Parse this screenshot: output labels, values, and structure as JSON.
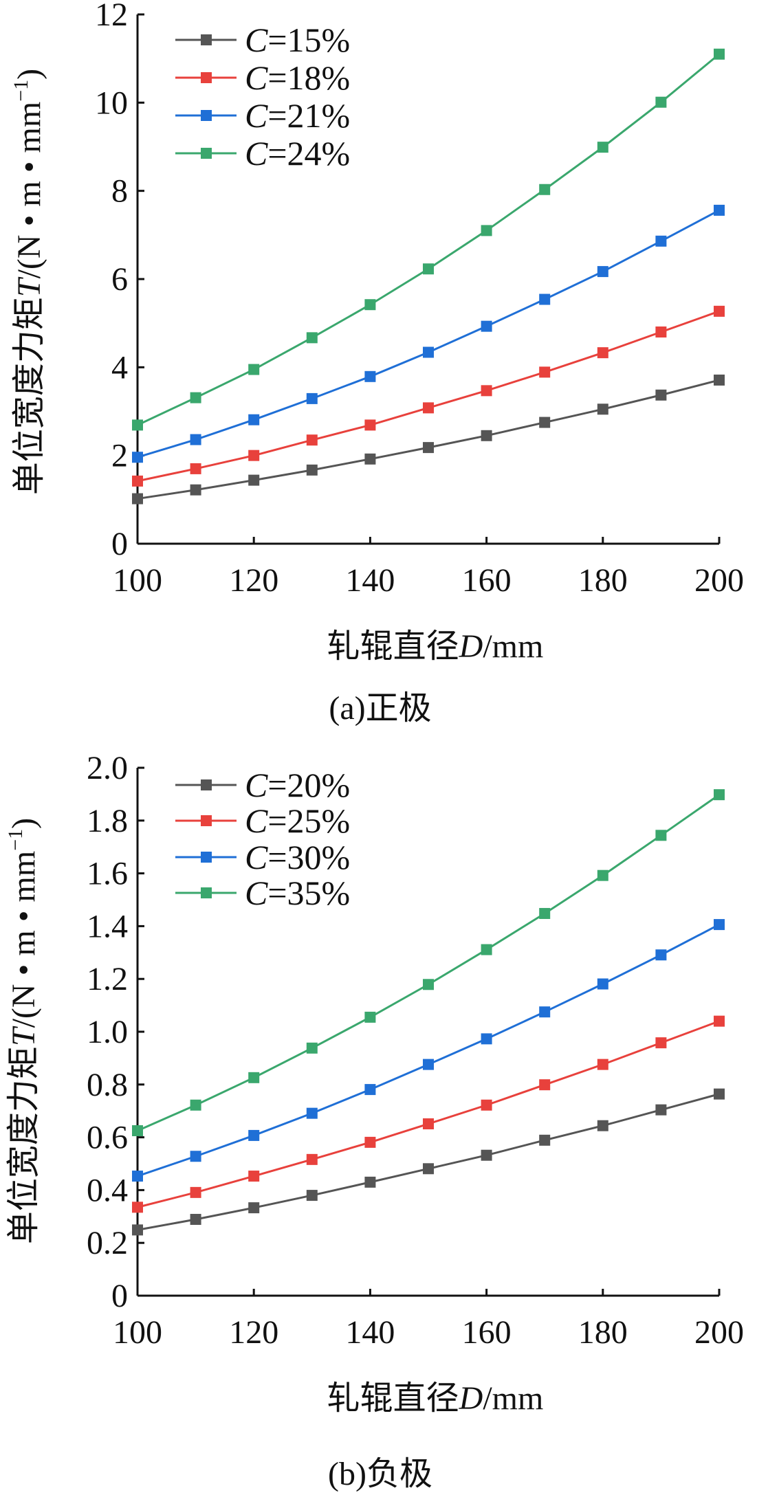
{
  "chart_data": [
    {
      "type": "line",
      "panel": "a",
      "caption": "(a)正极",
      "xlabel_prefix": "轧辊直径",
      "xlabel_var": "D",
      "xlabel_unit": "/mm",
      "ylabel_prefix": "单位宽度力矩",
      "ylabel_var": "T",
      "ylabel_unit": "/(N • m • mm",
      "ylabel_sup": "−1",
      "ylabel_close": ")",
      "xlim": [
        100,
        200
      ],
      "ylim": [
        0,
        12
      ],
      "xticks": [
        "100",
        "120",
        "140",
        "160",
        "180",
        "200"
      ],
      "yticks": [
        "0",
        "2",
        "4",
        "6",
        "8",
        "10",
        "12"
      ],
      "grid": false,
      "legend_position": "top-left",
      "x": [
        100,
        110,
        120,
        130,
        140,
        150,
        160,
        170,
        180,
        190,
        200
      ],
      "series": [
        {
          "name": "C=15%",
          "var": "C",
          "label": "=15%",
          "color": "#555555",
          "values": [
            1.02,
            1.22,
            1.44,
            1.67,
            1.92,
            2.18,
            2.45,
            2.75,
            3.05,
            3.37,
            3.71
          ]
        },
        {
          "name": "C=18%",
          "var": "C",
          "label": "=18%",
          "color": "#e8413c",
          "values": [
            1.42,
            1.7,
            2.0,
            2.35,
            2.69,
            3.08,
            3.47,
            3.89,
            4.33,
            4.8,
            5.27
          ]
        },
        {
          "name": "C=21%",
          "var": "C",
          "label": "=21%",
          "color": "#1f6fd6",
          "values": [
            1.96,
            2.36,
            2.81,
            3.29,
            3.79,
            4.34,
            4.93,
            5.54,
            6.17,
            6.86,
            7.56
          ]
        },
        {
          "name": "C=24%",
          "var": "C",
          "label": "=24%",
          "color": "#3aa76d",
          "values": [
            2.69,
            3.31,
            3.95,
            4.67,
            5.42,
            6.23,
            7.1,
            8.03,
            8.99,
            10.01,
            11.1
          ]
        }
      ]
    },
    {
      "type": "line",
      "panel": "b",
      "caption": "(b)负极",
      "xlabel_prefix": "轧辊直径",
      "xlabel_var": "D",
      "xlabel_unit": "/mm",
      "ylabel_prefix": "单位宽度力矩",
      "ylabel_var": "T",
      "ylabel_unit": "/(N • m • mm",
      "ylabel_sup": "−1",
      "ylabel_close": ")",
      "xlim": [
        100,
        200
      ],
      "ylim": [
        0,
        2.0
      ],
      "xticks": [
        "100",
        "120",
        "140",
        "160",
        "180",
        "200"
      ],
      "yticks": [
        "0",
        "0.2",
        "0.4",
        "0.6",
        "0.8",
        "1.0",
        "1.2",
        "1.4",
        "1.6",
        "1.8",
        "2.0"
      ],
      "grid": false,
      "legend_position": "top-left",
      "x": [
        100,
        110,
        120,
        130,
        140,
        150,
        160,
        170,
        180,
        190,
        200
      ],
      "series": [
        {
          "name": "C=20%",
          "var": "C",
          "label": "=20%",
          "color": "#555555",
          "values": [
            0.249,
            0.289,
            0.333,
            0.38,
            0.43,
            0.481,
            0.532,
            0.589,
            0.644,
            0.704,
            0.764
          ]
        },
        {
          "name": "C=25%",
          "var": "C",
          "label": "=25%",
          "color": "#e8413c",
          "values": [
            0.335,
            0.391,
            0.453,
            0.516,
            0.581,
            0.651,
            0.722,
            0.799,
            0.876,
            0.958,
            1.04
          ]
        },
        {
          "name": "C=30%",
          "var": "C",
          "label": "=30%",
          "color": "#1f6fd6",
          "values": [
            0.453,
            0.528,
            0.607,
            0.691,
            0.781,
            0.876,
            0.973,
            1.075,
            1.181,
            1.291,
            1.406
          ]
        },
        {
          "name": "C=35%",
          "var": "C",
          "label": "=35%",
          "color": "#3aa76d",
          "values": [
            0.625,
            0.722,
            0.826,
            0.938,
            1.055,
            1.179,
            1.311,
            1.448,
            1.592,
            1.744,
            1.898
          ]
        }
      ]
    }
  ]
}
